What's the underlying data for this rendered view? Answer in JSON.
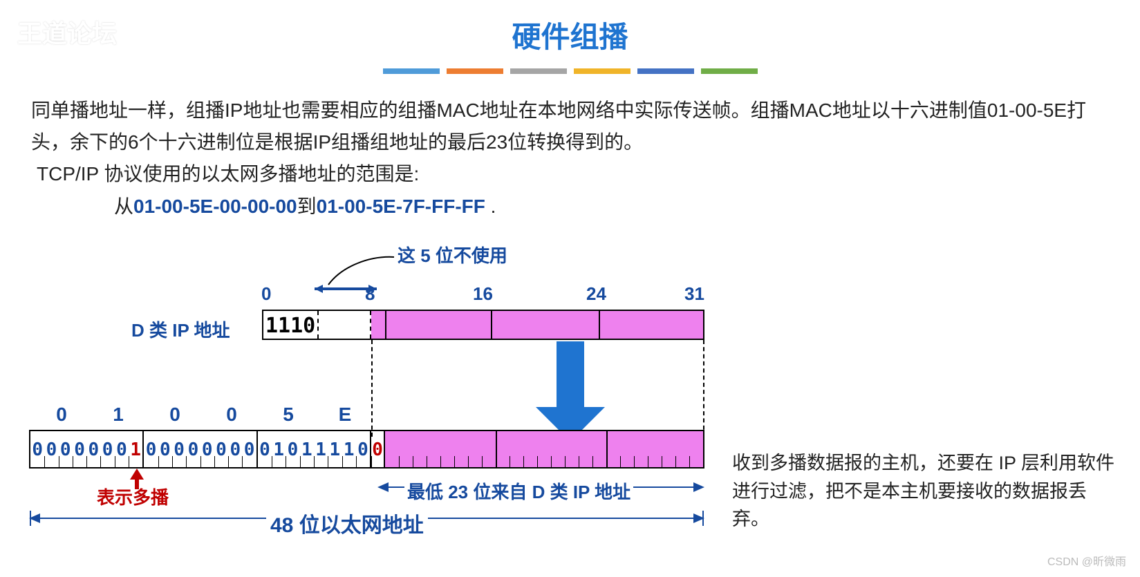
{
  "watermark": "王道论坛",
  "title": "硬件组播",
  "title_color": "#1f74d0",
  "colorbars": [
    "#4f9bd9",
    "#ed7d31",
    "#a5a5a5",
    "#f0b429",
    "#4472c4",
    "#70ad47"
  ],
  "paragraph1": "同单播地址一样，组播IP地址也需要相应的组播MAC地址在本地网络中实际传送帧。组播MAC地址以十六进制值01-00-5E打头，余下的6个十六进制位是根据IP组播组地址的最后23位转换得到的。",
  "paragraph2": "TCP/IP 协议使用的以太网多播地址的范围是:",
  "range_prefix": "从",
  "mac_start": "01-00-5E-00-00-00",
  "range_mid": "到",
  "mac_end": "01-00-5E-7F-FF-FF",
  "range_suffix": " .",
  "diagram": {
    "unused_label": "这 5 位不使用",
    "ip_ticks": [
      "0",
      "8",
      "16",
      "24",
      "31"
    ],
    "ip_label": "D 类 IP 地址",
    "ip_prefix_bits": "1110",
    "hex_labels": [
      "0",
      "1",
      "0",
      "0",
      "5",
      "E"
    ],
    "mac_bytes": [
      {
        "bits": "00000001",
        "colors": [
          "b",
          "b",
          "b",
          "b",
          "b",
          "b",
          "b",
          "r"
        ]
      },
      {
        "bits": "00000000",
        "colors": [
          "b",
          "b",
          "b",
          "b",
          "b",
          "b",
          "b",
          "b"
        ]
      },
      {
        "bits": "01011110",
        "colors": [
          "b",
          "b",
          "b",
          "b",
          "b",
          "b",
          "b",
          "b"
        ]
      }
    ],
    "red_zero": "0",
    "multicast_label": "表示多播",
    "low23_label": "最低 23 位来自 D 类 IP 地址",
    "mac48_label": "48 位以太网地址"
  },
  "side_note": "收到多播数据报的主机，还要在 IP 层利用软件进行过滤，把不是本主机要接收的数据报丢弃。",
  "csdn": "CSDN @昕微雨",
  "colors": {
    "blue": "#164a9e",
    "pink": "#ee81ee",
    "arrow": "#1f74d0",
    "red": "#c00000"
  }
}
